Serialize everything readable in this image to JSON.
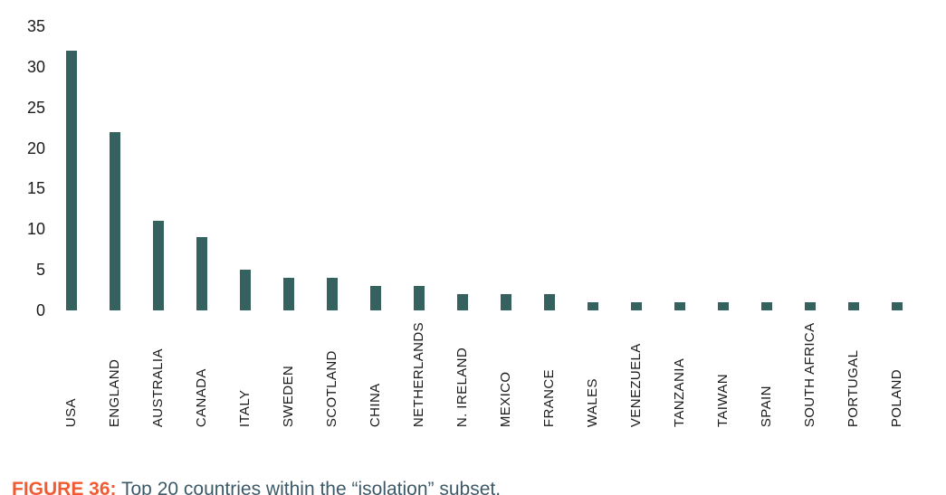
{
  "chart_data": {
    "type": "bar",
    "categories": [
      "USA",
      "ENGLAND",
      "AUSTRALIA",
      "CANADA",
      "ITALY",
      "SWEDEN",
      "SCOTLAND",
      "CHINA",
      "NETHERLANDS",
      "N. IRELAND",
      "MEXICO",
      "FRANCE",
      "WALES",
      "VENEZUELA",
      "TANZANIA",
      "TAIWAN",
      "SPAIN",
      "SOUTH AFRICA",
      "PORTUGAL",
      "POLAND"
    ],
    "values": [
      32,
      22,
      11,
      9,
      5,
      4,
      4,
      3,
      3,
      2,
      2,
      2,
      1,
      1,
      1,
      1,
      1,
      1,
      1,
      1
    ],
    "title": "",
    "xlabel": "",
    "ylabel": "",
    "ylim": [
      0,
      35
    ],
    "yticks": [
      0,
      5,
      10,
      15,
      20,
      25,
      30,
      35
    ],
    "grid": false,
    "legend": false,
    "bar_color": "#35615F",
    "tick_label_color": "#1b1b1b"
  },
  "caption": {
    "label": "FIGURE 36:",
    "text": "Top 20 countries within the “isolation” subset.",
    "label_color": "#F15B33",
    "text_color": "#3D5968"
  }
}
